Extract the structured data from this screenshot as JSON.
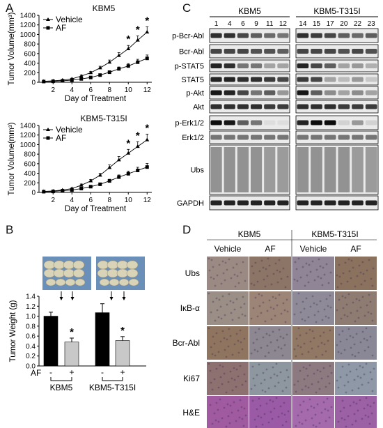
{
  "panels": {
    "A": {
      "letter": "A",
      "charts": [
        {
          "title": "KBM5",
          "xlabel": "Day of Treatment",
          "ylabel": "Tumor Volume(mm³)",
          "legend": [
            "Vehicle",
            "AF"
          ]
        },
        {
          "title": "KBM5-T315I",
          "xlabel": "Day of Treatment",
          "ylabel": "Tumor Volume(mm³)",
          "legend": [
            "Vehicle",
            "AF"
          ]
        }
      ]
    },
    "B": {
      "letter": "B",
      "ylabel": "Tumor Weight (g)",
      "af_label": "AF",
      "minus": "-",
      "plus": "+",
      "groups": [
        "KBM5",
        "KBM5-T315I"
      ]
    },
    "C": {
      "letter": "C",
      "groups": [
        "KBM5",
        "KBM5-T315I"
      ],
      "lanes_left": [
        "1",
        "4",
        "6",
        "9",
        "11",
        "12"
      ],
      "lanes_right": [
        "14",
        "15",
        "17",
        "20",
        "22",
        "23"
      ],
      "rows": [
        "p-Bcr-Abl",
        "Bcr-Abl",
        "p-STAT5",
        "STAT5",
        "p-Akt",
        "Akt",
        "p-Erk1/2",
        "Erk1/2",
        "Ubs",
        "GAPDH"
      ]
    },
    "D": {
      "letter": "D",
      "groups": [
        "KBM5",
        "KBM5-T315I"
      ],
      "columns": [
        "Vehicle",
        "AF",
        "Vehicle",
        "AF"
      ],
      "rows": [
        "Ubs",
        "IκB-α",
        "Bcr-Abl",
        "Ki67",
        "H&E"
      ]
    }
  },
  "chart_data": [
    {
      "type": "line",
      "title": "KBM5",
      "xlabel": "Day of Treatment",
      "ylabel": "Tumor Volume(mm³)",
      "x": [
        1,
        2,
        3,
        4,
        5,
        6,
        7,
        8,
        9,
        10,
        11,
        12
      ],
      "xticks": [
        2,
        4,
        6,
        8,
        10,
        12
      ],
      "ylim": [
        0,
        1400
      ],
      "yticks": [
        0,
        200,
        400,
        600,
        800,
        1000,
        1200,
        1400
      ],
      "series": [
        {
          "name": "Vehicle",
          "values": [
            20,
            30,
            45,
            70,
            130,
            200,
            300,
            420,
            560,
            700,
            880,
            1050
          ],
          "errors": [
            5,
            8,
            10,
            15,
            20,
            25,
            35,
            45,
            60,
            70,
            90,
            110
          ]
        },
        {
          "name": "AF",
          "values": [
            15,
            20,
            30,
            45,
            70,
            100,
            150,
            210,
            280,
            340,
            420,
            500
          ],
          "errors": [
            5,
            5,
            8,
            10,
            15,
            20,
            25,
            30,
            40,
            50,
            60,
            70
          ]
        }
      ],
      "significance": [
        {
          "x": 10,
          "mark": "*"
        },
        {
          "x": 11,
          "mark": "*"
        },
        {
          "x": 12,
          "mark": "*"
        }
      ]
    },
    {
      "type": "line",
      "title": "KBM5-T315I",
      "xlabel": "Day of Treatment",
      "ylabel": "Tumor Volume(mm³)",
      "x": [
        1,
        2,
        3,
        4,
        5,
        6,
        7,
        8,
        9,
        10,
        11,
        12
      ],
      "xticks": [
        2,
        4,
        6,
        8,
        10,
        12
      ],
      "ylim": [
        0,
        1400
      ],
      "yticks": [
        0,
        200,
        400,
        600,
        800,
        1000,
        1200,
        1400
      ],
      "series": [
        {
          "name": "Vehicle",
          "values": [
            20,
            30,
            50,
            80,
            150,
            240,
            360,
            520,
            680,
            820,
            960,
            1100
          ],
          "errors": [
            5,
            8,
            10,
            15,
            25,
            30,
            40,
            55,
            70,
            80,
            100,
            120
          ]
        },
        {
          "name": "AF",
          "values": [
            15,
            20,
            35,
            50,
            80,
            120,
            170,
            240,
            320,
            390,
            460,
            530
          ],
          "errors": [
            5,
            5,
            8,
            10,
            15,
            20,
            25,
            35,
            45,
            55,
            65,
            75
          ]
        }
      ],
      "significance": [
        {
          "x": 10,
          "mark": "*"
        },
        {
          "x": 11,
          "mark": "*"
        },
        {
          "x": 12,
          "mark": "*"
        }
      ]
    },
    {
      "type": "bar",
      "ylabel": "Tumor Weight (g)",
      "categories": [
        "KBM5 -",
        "KBM5 +",
        "KBM5-T315I -",
        "KBM5-T315I +"
      ],
      "values": [
        1.0,
        0.48,
        1.07,
        0.51
      ],
      "errors": [
        0.08,
        0.08,
        0.18,
        0.08
      ],
      "colors": [
        "#000000",
        "#c8c8c8",
        "#000000",
        "#c8c8c8"
      ],
      "ylim": [
        0,
        1.4
      ],
      "yticks": [
        0,
        0.2,
        0.4,
        0.6,
        0.8,
        1.0,
        1.2,
        1.4
      ],
      "significance": [
        {
          "category": "KBM5 +",
          "mark": "*"
        },
        {
          "category": "KBM5-T315I +",
          "mark": "*"
        }
      ]
    }
  ]
}
